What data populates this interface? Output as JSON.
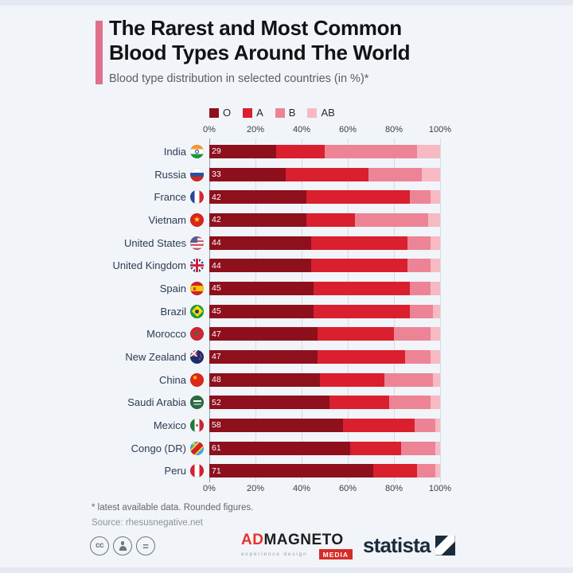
{
  "header": {
    "title_line1": "The Rarest and Most Common",
    "title_line2": "Blood Types Around The World",
    "subtitle": "Blood type distribution in selected countries (in %)*"
  },
  "chart_data": {
    "type": "bar",
    "stacked": true,
    "orientation": "horizontal",
    "title": "The Rarest and Most Common Blood Types Around The World",
    "subtitle": "Blood type distribution in selected countries (in %)*",
    "legend_position": "top",
    "grid": true,
    "xlim": [
      0,
      100
    ],
    "x_ticks": [
      "0%",
      "20%",
      "40%",
      "60%",
      "80%",
      "100%"
    ],
    "categories": [
      "India",
      "Russia",
      "France",
      "Vietnam",
      "United States",
      "United Kingdom",
      "Spain",
      "Brazil",
      "Morocco",
      "New Zealand",
      "China",
      "Saudi Arabia",
      "Mexico",
      "Congo (DR)",
      "Peru"
    ],
    "flags": [
      "india",
      "russia",
      "france",
      "vietnam",
      "usa",
      "uk",
      "spain",
      "brazil",
      "morocco",
      "new-zealand",
      "china",
      "saudi-arabia",
      "mexico",
      "congo-dr",
      "peru"
    ],
    "series": [
      {
        "name": "O",
        "color": "#8e101d",
        "values": [
          29,
          33,
          42,
          42,
          44,
          44,
          45,
          45,
          47,
          47,
          48,
          52,
          58,
          61,
          71
        ]
      },
      {
        "name": "A",
        "color": "#da1f2e",
        "values": [
          21,
          36,
          45,
          21,
          42,
          42,
          42,
          42,
          33,
          38,
          28,
          26,
          31,
          22,
          19
        ]
      },
      {
        "name": "B",
        "color": "#ec8496",
        "values": [
          40,
          23,
          9,
          32,
          10,
          10,
          9,
          10,
          16,
          11,
          21,
          18,
          9,
          15,
          8
        ]
      },
      {
        "name": "AB",
        "color": "#f7bac3",
        "values": [
          10,
          8,
          4,
          5,
          4,
          4,
          4,
          3,
          4,
          4,
          3,
          4,
          2,
          2,
          2
        ]
      }
    ],
    "bar_value_labels": [
      "29",
      "33",
      "42",
      "42",
      "44",
      "44",
      "45",
      "45",
      "47",
      "47",
      "48",
      "52",
      "58",
      "61",
      "71"
    ]
  },
  "footer": {
    "footnote": "* latest available data. Rounded figures.",
    "source": "Source: rhesusnegative.net",
    "license_icons": [
      "creative-commons-icon",
      "attribution-icon",
      "equal-icon"
    ],
    "admagneto": {
      "prefix": "AD",
      "name": "MAGNETO",
      "tagline": "experience design",
      "media_label": "MEDIA"
    },
    "statista_label": "statista"
  },
  "colors": {
    "background": "#f1f4f9",
    "accent_bar": "#e0708c",
    "edge_strip": "#e4e9f1",
    "zero_line": "#959eaa",
    "gridline": "#d7dce4"
  }
}
